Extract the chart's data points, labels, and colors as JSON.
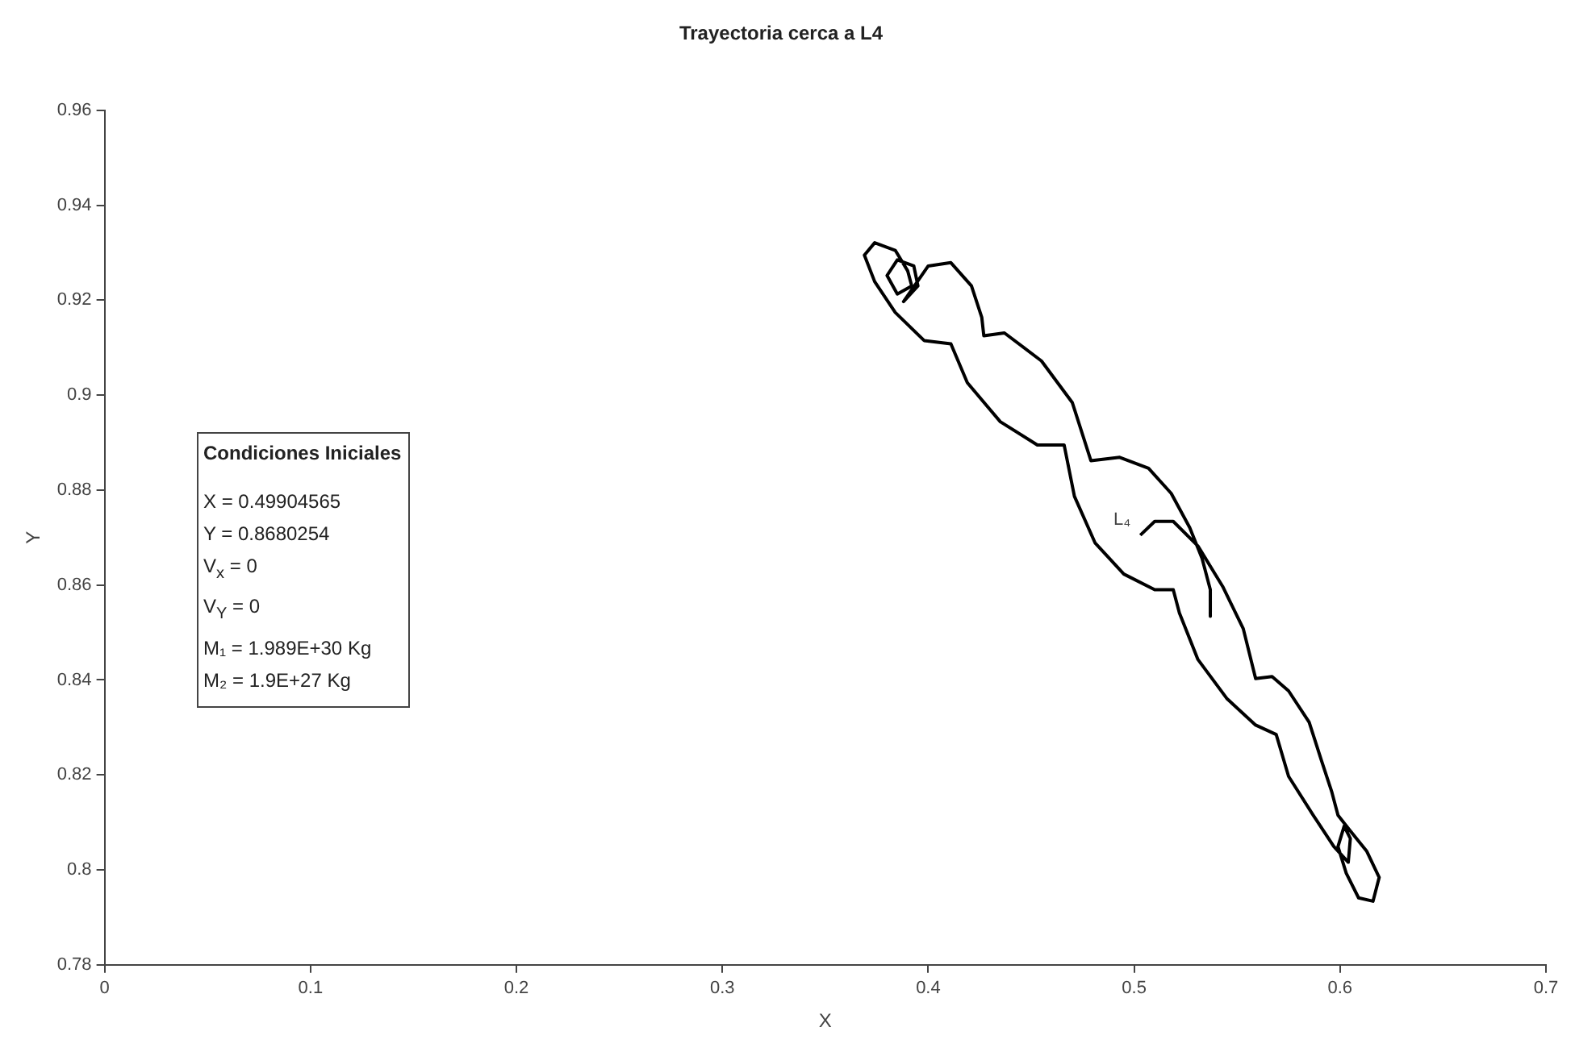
{
  "chart_data": {
    "type": "line",
    "title": "Trayectoria cerca a L4",
    "xlabel": "X",
    "ylabel": "Y",
    "xlim": [
      0,
      0.7
    ],
    "xticks": [
      0,
      0.1,
      0.2,
      0.3,
      0.4,
      0.5,
      0.6,
      0.7
    ],
    "ylim": [
      0.78,
      0.96
    ],
    "yticks": [
      0.78,
      0.8,
      0.82,
      0.84,
      0.86,
      0.88,
      0.9,
      0.92,
      0.94,
      0.96
    ],
    "grid": false,
    "legend": false,
    "marker": "none",
    "line_style": "solid",
    "series": [
      {
        "color": "#000000",
        "x": [
          0.503,
          0.51,
          0.519,
          0.531,
          0.543,
          0.553,
          0.559,
          0.567,
          0.575,
          0.585,
          0.591,
          0.596,
          0.599,
          0.605,
          0.613,
          0.619,
          0.616,
          0.609,
          0.603,
          0.599,
          0.602,
          0.605,
          0.604,
          0.597,
          0.587,
          0.575,
          0.569,
          0.559,
          0.545,
          0.531,
          0.522,
          0.519,
          0.51,
          0.495,
          0.481,
          0.471,
          0.466,
          0.453,
          0.435,
          0.419,
          0.411,
          0.398,
          0.384,
          0.374,
          0.369,
          0.374,
          0.384,
          0.39,
          0.392,
          0.385,
          0.38,
          0.385,
          0.393,
          0.395,
          0.388,
          0.4,
          0.411,
          0.421,
          0.426,
          0.427,
          0.437,
          0.455,
          0.47,
          0.479,
          0.493,
          0.507,
          0.518,
          0.527,
          0.533,
          0.537,
          0.537
        ],
        "values": [
          0.8705,
          0.8734,
          0.8734,
          0.8682,
          0.8597,
          0.8508,
          0.8403,
          0.8407,
          0.8377,
          0.8311,
          0.823,
          0.8164,
          0.8115,
          0.8082,
          0.8039,
          0.7984,
          0.7934,
          0.7941,
          0.7993,
          0.8049,
          0.8092,
          0.8066,
          0.8016,
          0.8049,
          0.8115,
          0.8197,
          0.8285,
          0.8305,
          0.8361,
          0.8443,
          0.8541,
          0.859,
          0.859,
          0.8623,
          0.8689,
          0.8787,
          0.8895,
          0.8895,
          0.8944,
          0.9026,
          0.9108,
          0.9115,
          0.9174,
          0.9239,
          0.9295,
          0.9321,
          0.9305,
          0.9262,
          0.923,
          0.9213,
          0.9252,
          0.9285,
          0.9272,
          0.923,
          0.9197,
          0.9272,
          0.9279,
          0.923,
          0.9164,
          0.9125,
          0.9131,
          0.9072,
          0.8984,
          0.8862,
          0.8869,
          0.8846,
          0.8793,
          0.8721,
          0.8656,
          0.859,
          0.8534
        ]
      }
    ],
    "annotations": [
      {
        "text": "L₄",
        "x": 0.503,
        "y": 0.8705
      },
      "Condiciones Iniciales",
      "X = 0.49904565",
      "Y = 0.8680254",
      "V$_{x}$ = 0",
      "V$_{Y}$ = 0",
      "M₁ = 1.989E+30 Kg",
      "M₂ = 1.9E+27 Kg"
    ]
  }
}
